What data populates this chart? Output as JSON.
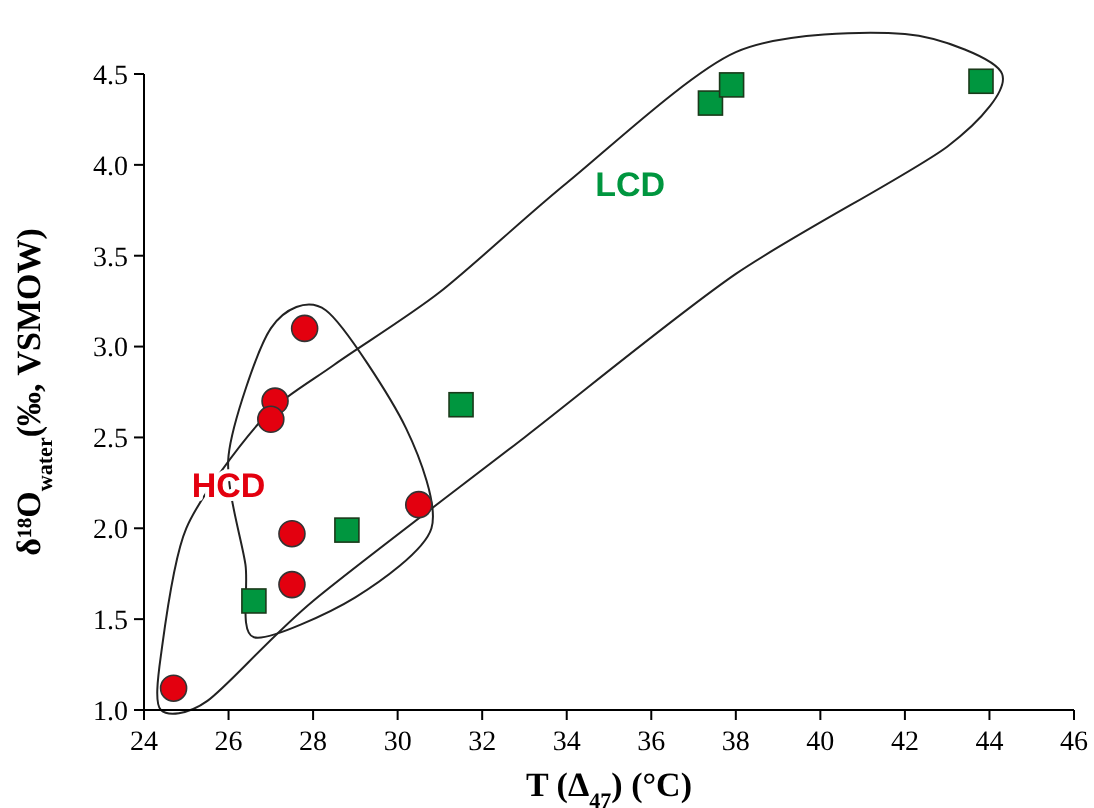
{
  "chart_data": {
    "type": "scatter",
    "xlabel": "T (Δ$_{47}$)  (°C)",
    "ylabel": "δ¹⁸O$_{water}$(‰, VSMOW)",
    "xlim": [
      24,
      46
    ],
    "xticks": [
      24,
      26,
      28,
      30,
      32,
      34,
      36,
      38,
      40,
      42,
      44,
      46
    ],
    "ylim": [
      1,
      4.5
    ],
    "yticks": [
      {
        "value": 1,
        "label": "1.0"
      },
      {
        "value": 1.5,
        "label": "1.5"
      },
      {
        "value": 2,
        "label": "2.0"
      },
      {
        "value": 2.5,
        "label": "2.5"
      },
      {
        "value": 3,
        "label": "3.0"
      },
      {
        "value": 3.5,
        "label": "3.5"
      },
      {
        "value": 4,
        "label": "4.0"
      },
      {
        "value": 4.5,
        "label": "4.5"
      }
    ],
    "series": [
      {
        "name": "HCD",
        "color": "#e3000f",
        "marker": "circle",
        "x": [
          24.7,
          27.8,
          27.1,
          27.0,
          27.5,
          27.5,
          30.5
        ],
        "values": [
          1.12,
          3.1,
          2.7,
          2.6,
          1.97,
          1.69,
          2.13
        ]
      },
      {
        "name": "LCD",
        "color": "#00963f",
        "marker": "square",
        "x": [
          26.6,
          28.8,
          31.5,
          37.4,
          37.9,
          43.8
        ],
        "values": [
          1.6,
          1.99,
          2.68,
          4.34,
          4.44,
          4.46
        ]
      }
    ]
  }
}
